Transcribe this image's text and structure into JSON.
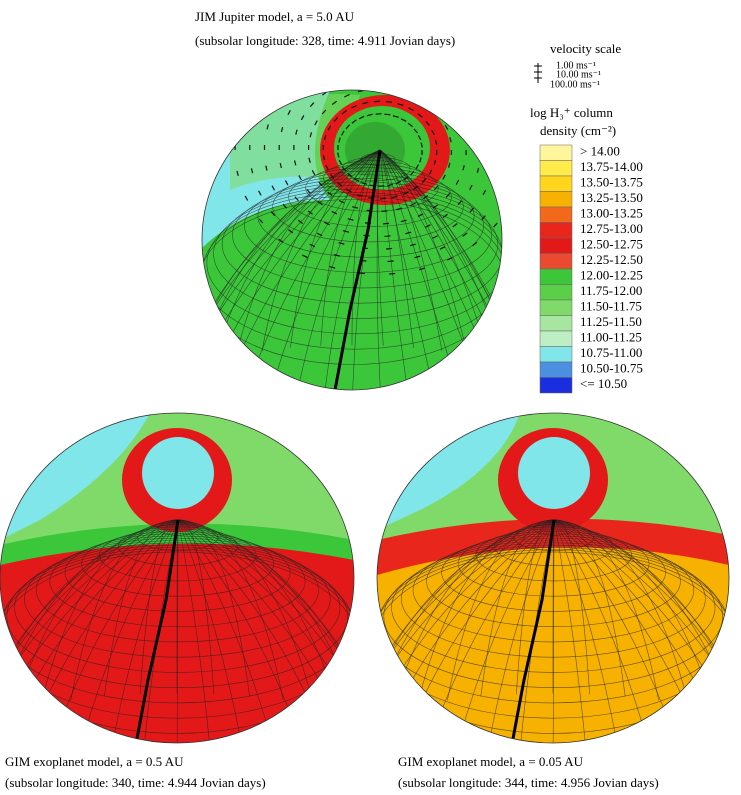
{
  "panels": [
    {
      "caption": [
        "JIM Jupiter model, a = 5.0 AU",
        "(subsolar longitude: 328, time: 4.911 Jovian days)"
      ]
    },
    {
      "caption": [
        "GIM exoplanet model, a = 0.5 AU",
        "(subsolar longitude: 340, time: 4.944 Jovian days)"
      ]
    },
    {
      "caption": [
        "GIM exoplanet model, a = 0.05 AU",
        "(subsolar longitude: 344, time: 4.956 Jovian days)"
      ]
    }
  ],
  "velocity_scale": {
    "title": "velocity scale",
    "labels": [
      "1.00 ms⁻¹",
      "10.00 ms⁻¹",
      "100.00 ms⁻¹"
    ]
  },
  "legend": {
    "title": [
      "log H₃⁺ column",
      "density (cm⁻²)"
    ],
    "entries": [
      {
        "label": ">  14.00",
        "color": "#fff59c"
      },
      {
        "label": "13.75-14.00",
        "color": "#ffec4a"
      },
      {
        "label": "13.50-13.75",
        "color": "#ffd61c"
      },
      {
        "label": "13.25-13.50",
        "color": "#f7b100"
      },
      {
        "label": "13.00-13.25",
        "color": "#f3691c"
      },
      {
        "label": "12.75-13.00",
        "color": "#e8261c"
      },
      {
        "label": "12.50-12.75",
        "color": "#e31818"
      },
      {
        "label": "12.25-12.50",
        "color": "#ea4a30"
      },
      {
        "label": "12.00-12.25",
        "color": "#3cc63a"
      },
      {
        "label": "11.75-12.00",
        "color": "#5ccf48"
      },
      {
        "label": "11.50-11.75",
        "color": "#80da6a"
      },
      {
        "label": "11.25-11.50",
        "color": "#a7e6a0"
      },
      {
        "label": "11.00-11.25",
        "color": "#bdeec4"
      },
      {
        "label": "10.75-11.00",
        "color": "#80e6ea"
      },
      {
        "label": "10.50-10.75",
        "color": "#4a8fe0"
      },
      {
        "label": "<=  10.50",
        "color": "#1a2ee0"
      }
    ]
  }
}
